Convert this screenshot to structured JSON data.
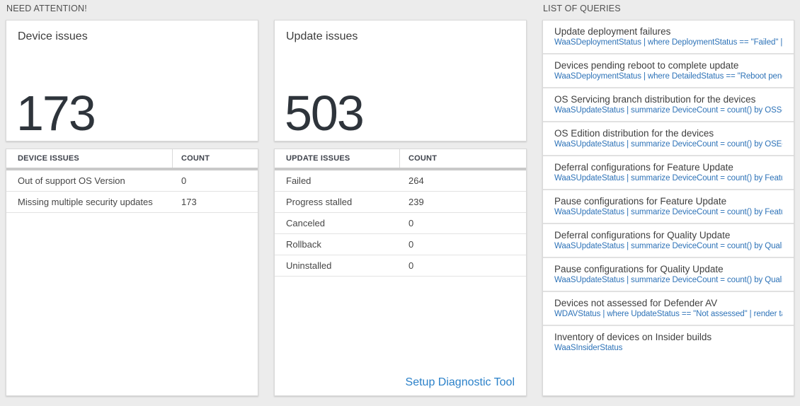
{
  "sections": {
    "need_attention": "NEED ATTENTION!",
    "list_of_queries": "LIST OF QUERIES"
  },
  "colors": {
    "query_link_blue": "#2e73b8",
    "action_link_blue": "#2b81c9",
    "big_number_dark": "#2e343b",
    "page_background": "#ececec"
  },
  "device_card": {
    "title": "Device issues",
    "count": "173",
    "table": {
      "headers": [
        "DEVICE ISSUES",
        "COUNT"
      ],
      "rows": [
        {
          "label": "Out of support OS Version",
          "count": "0"
        },
        {
          "label": "Missing multiple security updates",
          "count": "173"
        }
      ]
    }
  },
  "update_card": {
    "title": "Update issues",
    "count": "503",
    "table": {
      "headers": [
        "UPDATE ISSUES",
        "COUNT"
      ],
      "rows": [
        {
          "label": "Failed",
          "count": "264"
        },
        {
          "label": "Progress stalled",
          "count": "239"
        },
        {
          "label": "Canceled",
          "count": "0"
        },
        {
          "label": "Rollback",
          "count": "0"
        },
        {
          "label": "Uninstalled",
          "count": "0"
        }
      ]
    },
    "link": "Setup Diagnostic Tool"
  },
  "queries": {
    "items": [
      {
        "title": "Update deployment failures",
        "query": "WaaSDeploymentStatus | where DeploymentStatus == \"Failed\" |..."
      },
      {
        "title": "Devices pending reboot to complete update",
        "query": "WaaSDeploymentStatus | where DetailedStatus == \"Reboot pend..."
      },
      {
        "title": "OS Servicing branch distribution for the devices",
        "query": "WaaSUpdateStatus | summarize DeviceCount = count() by OSSer..."
      },
      {
        "title": "OS Edition distribution for the devices",
        "query": "WaaSUpdateStatus | summarize DeviceCount = count() by OSEdit..."
      },
      {
        "title": "Deferral configurations for Feature Update",
        "query": "WaaSUpdateStatus | summarize DeviceCount = count() by Featur..."
      },
      {
        "title": "Pause configurations for Feature Update",
        "query": "WaaSUpdateStatus | summarize DeviceCount = count() by Featur..."
      },
      {
        "title": "Deferral configurations for Quality Update",
        "query": "WaaSUpdateStatus | summarize DeviceCount = count() by Qualit..."
      },
      {
        "title": "Pause configurations for Quality Update",
        "query": "WaaSUpdateStatus | summarize DeviceCount = count() by Qualit..."
      },
      {
        "title": "Devices not assessed for Defender AV",
        "query": "WDAVStatus | where UpdateStatus == \"Not assessed\" | render ta..."
      },
      {
        "title": "Inventory of devices on Insider builds",
        "query": "WaaSInsiderStatus"
      }
    ]
  }
}
